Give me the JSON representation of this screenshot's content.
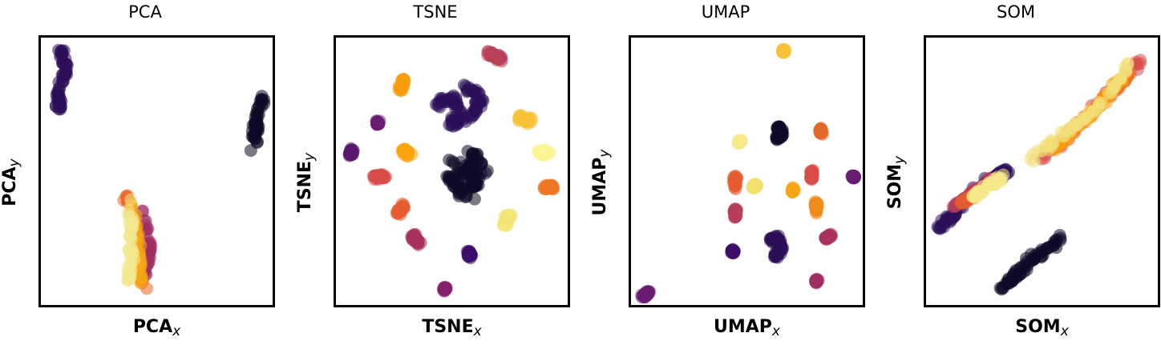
{
  "chart_data": [
    {
      "type": "scatter",
      "title": "PCA",
      "xlabel_main": "PCA",
      "xlabel_sub": "x",
      "ylabel_main": "PCA",
      "ylabel_sub": "y",
      "grid": false,
      "ticks": false,
      "clusters": [
        {
          "color": "#2b0f57",
          "points": [
            [
              0.09,
              0.05
            ],
            [
              0.11,
              0.12
            ],
            [
              0.07,
              0.2
            ],
            [
              0.08,
              0.27
            ]
          ],
          "spread": 0.02
        },
        {
          "color": "#0e0a27",
          "points": [
            [
              0.96,
              0.22
            ],
            [
              0.93,
              0.31
            ],
            [
              0.92,
              0.41
            ]
          ],
          "spread": 0.02
        },
        {
          "color": "#ea6524",
          "points": [
            [
              0.37,
              0.6
            ],
            [
              0.42,
              0.75
            ],
            [
              0.45,
              0.96
            ]
          ],
          "spread": 0.018
        },
        {
          "color": "#9f2d63",
          "points": [
            [
              0.44,
              0.65
            ],
            [
              0.47,
              0.8
            ],
            [
              0.44,
              0.9
            ]
          ],
          "spread": 0.016
        },
        {
          "color": "#f5a514",
          "points": [
            [
              0.39,
              0.63
            ],
            [
              0.42,
              0.78
            ],
            [
              0.43,
              0.92
            ]
          ],
          "spread": 0.016
        },
        {
          "color": "#f2e88f",
          "points": [
            [
              0.38,
              0.6
            ],
            [
              0.39,
              0.76
            ],
            [
              0.38,
              0.92
            ]
          ],
          "spread": 0.02
        }
      ]
    },
    {
      "type": "scatter",
      "title": "TSNE",
      "xlabel_main": "TSNE",
      "xlabel_sub": "x",
      "ylabel_main": "TSNE",
      "ylabel_sub": "y",
      "grid": false,
      "ticks": false,
      "clusters": [
        {
          "color": "#0e0a27",
          "points": [
            [
              0.5,
              0.45
            ],
            [
              0.58,
              0.5
            ],
            [
              0.62,
              0.55
            ],
            [
              0.54,
              0.58
            ],
            [
              0.49,
              0.52
            ],
            [
              0.66,
              0.5
            ],
            [
              0.58,
              0.43
            ],
            [
              0.6,
              0.6
            ]
          ],
          "spread": 0.03
        },
        {
          "color": "#2b0f57",
          "points": [
            [
              0.44,
              0.25
            ],
            [
              0.51,
              0.22
            ],
            [
              0.54,
              0.3
            ],
            [
              0.48,
              0.33
            ],
            [
              0.6,
              0.28
            ],
            [
              0.63,
              0.22
            ],
            [
              0.55,
              0.18
            ]
          ],
          "spread": 0.025
        },
        {
          "color": "#b84058",
          "points": [
            [
              0.66,
              0.06
            ],
            [
              0.71,
              0.08
            ]
          ],
          "spread": 0.015
        },
        {
          "color": "#f79c0e",
          "points": [
            [
              0.28,
              0.2
            ],
            [
              0.29,
              0.16
            ]
          ],
          "spread": 0.014
        },
        {
          "color": "#6a1c73",
          "points": [
            [
              0.18,
              0.32
            ]
          ],
          "spread": 0.012
        },
        {
          "color": "#5a186e",
          "points": [
            [
              0.07,
              0.42
            ],
            [
              0.06,
              0.44
            ]
          ],
          "spread": 0.014
        },
        {
          "color": "#f8c137",
          "points": [
            [
              0.79,
              0.3
            ],
            [
              0.84,
              0.31
            ]
          ],
          "spread": 0.015
        },
        {
          "color": "#fcf496",
          "points": [
            [
              0.87,
              0.43
            ],
            [
              0.91,
              0.43
            ]
          ],
          "spread": 0.015
        },
        {
          "color": "#fca40f",
          "points": [
            [
              0.29,
              0.42
            ],
            [
              0.32,
              0.44
            ]
          ],
          "spread": 0.014
        },
        {
          "color": "#d74d48",
          "points": [
            [
              0.17,
              0.52
            ],
            [
              0.21,
              0.52
            ]
          ],
          "spread": 0.014
        },
        {
          "color": "#ee7622",
          "points": [
            [
              0.9,
              0.56
            ],
            [
              0.94,
              0.56
            ]
          ],
          "spread": 0.015
        },
        {
          "color": "#e55c30",
          "points": [
            [
              0.26,
              0.66
            ],
            [
              0.29,
              0.63
            ]
          ],
          "spread": 0.015
        },
        {
          "color": "#f3e577",
          "points": [
            [
              0.73,
              0.7
            ],
            [
              0.75,
              0.66
            ]
          ],
          "spread": 0.016
        },
        {
          "color": "#a8315f",
          "points": [
            [
              0.33,
              0.74
            ],
            [
              0.36,
              0.77
            ]
          ],
          "spread": 0.014
        },
        {
          "color": "#3d0f6a",
          "points": [
            [
              0.57,
              0.8
            ],
            [
              0.58,
              0.82
            ]
          ],
          "spread": 0.013
        },
        {
          "color": "#861f6d",
          "points": [
            [
              0.47,
              0.94
            ]
          ],
          "spread": 0.011
        }
      ]
    },
    {
      "type": "scatter",
      "title": "UMAP",
      "xlabel_main": "UMAP",
      "xlabel_sub": "x",
      "ylabel_main": "UMAP",
      "ylabel_sub": "y",
      "grid": false,
      "ticks": false,
      "clusters": [
        {
          "color": "#f8c137",
          "points": [
            [
              0.66,
              0.05
            ]
          ],
          "spread": 0.01
        },
        {
          "color": "#0e0a27",
          "points": [
            [
              0.63,
              0.33
            ],
            [
              0.65,
              0.36
            ],
            [
              0.63,
              0.38
            ]
          ],
          "spread": 0.016
        },
        {
          "color": "#f6e98a",
          "points": [
            [
              0.47,
              0.39
            ]
          ],
          "spread": 0.011
        },
        {
          "color": "#e2682c",
          "points": [
            [
              0.82,
              0.34
            ],
            [
              0.82,
              0.36
            ]
          ],
          "spread": 0.01
        },
        {
          "color": "#d84d48",
          "points": [
            [
              0.78,
              0.5
            ],
            [
              0.78,
              0.53
            ]
          ],
          "spread": 0.01
        },
        {
          "color": "#6a1c73",
          "points": [
            [
              0.96,
              0.52
            ]
          ],
          "spread": 0.01
        },
        {
          "color": "#e55c30",
          "points": [
            [
              0.45,
              0.52
            ],
            [
              0.45,
              0.56
            ]
          ],
          "spread": 0.01
        },
        {
          "color": "#f2e06f",
          "points": [
            [
              0.53,
              0.56
            ],
            [
              0.54,
              0.55
            ]
          ],
          "spread": 0.012
        },
        {
          "color": "#f5a514",
          "points": [
            [
              0.7,
              0.57
            ]
          ],
          "spread": 0.01
        },
        {
          "color": "#f08c1b",
          "points": [
            [
              0.8,
              0.62
            ],
            [
              0.8,
              0.65
            ]
          ],
          "spread": 0.01
        },
        {
          "color": "#b63e5b",
          "points": [
            [
              0.45,
              0.64
            ],
            [
              0.45,
              0.67
            ]
          ],
          "spread": 0.01
        },
        {
          "color": "#2b0f57",
          "points": [
            [
              0.6,
              0.76
            ],
            [
              0.63,
              0.75
            ],
            [
              0.65,
              0.79
            ],
            [
              0.62,
              0.82
            ]
          ],
          "spread": 0.016
        },
        {
          "color": "#a8315f",
          "points": [
            [
              0.84,
              0.75
            ],
            [
              0.86,
              0.74
            ]
          ],
          "spread": 0.011
        },
        {
          "color": "#3d0f6a",
          "points": [
            [
              0.44,
              0.8
            ]
          ],
          "spread": 0.01
        },
        {
          "color": "#9f2d63",
          "points": [
            [
              0.8,
              0.91
            ]
          ],
          "spread": 0.01
        },
        {
          "color": "#6a1c73",
          "points": [
            [
              0.05,
              0.97
            ],
            [
              0.08,
              0.95
            ]
          ],
          "spread": 0.01
        }
      ]
    },
    {
      "type": "scatter",
      "title": "SOM",
      "xlabel_main": "SOM",
      "xlabel_sub": "x",
      "ylabel_main": "SOM",
      "ylabel_sub": "y",
      "grid": false,
      "ticks": false,
      "clusters": [
        {
          "color": "#d74d48",
          "points": [
            [
              0.5,
              0.46
            ],
            [
              0.65,
              0.33
            ],
            [
              0.8,
              0.2
            ],
            [
              0.94,
              0.08
            ]
          ],
          "spread": 0.02
        },
        {
          "color": "#ee7622",
          "points": [
            [
              0.6,
              0.37
            ],
            [
              0.75,
              0.25
            ],
            [
              0.9,
              0.12
            ]
          ],
          "spread": 0.018
        },
        {
          "color": "#f79c0e",
          "points": [
            [
              0.55,
              0.42
            ],
            [
              0.72,
              0.28
            ],
            [
              0.86,
              0.14
            ]
          ],
          "spread": 0.016
        },
        {
          "color": "#f3e07a",
          "points": [
            [
              0.45,
              0.46
            ],
            [
              0.6,
              0.36
            ],
            [
              0.78,
              0.23
            ],
            [
              0.88,
              0.1
            ]
          ],
          "spread": 0.018
        },
        {
          "color": "#2b0f57",
          "points": [
            [
              0.05,
              0.72
            ],
            [
              0.12,
              0.66
            ],
            [
              0.2,
              0.58
            ],
            [
              0.3,
              0.52
            ],
            [
              0.35,
              0.5
            ]
          ],
          "spread": 0.02
        },
        {
          "color": "#b63e5b",
          "points": [
            [
              0.12,
              0.63
            ],
            [
              0.2,
              0.58
            ],
            [
              0.28,
              0.53
            ]
          ],
          "spread": 0.016
        },
        {
          "color": "#e55c30",
          "points": [
            [
              0.15,
              0.62
            ],
            [
              0.22,
              0.58
            ]
          ],
          "spread": 0.014
        },
        {
          "color": "#f6e98a",
          "points": [
            [
              0.2,
              0.6
            ],
            [
              0.28,
              0.55
            ],
            [
              0.33,
              0.52
            ]
          ],
          "spread": 0.016
        },
        {
          "color": "#0e0a27",
          "points": [
            [
              0.32,
              0.95
            ],
            [
              0.38,
              0.9
            ],
            [
              0.44,
              0.84
            ],
            [
              0.52,
              0.79
            ],
            [
              0.58,
              0.75
            ]
          ],
          "spread": 0.024
        }
      ]
    }
  ]
}
